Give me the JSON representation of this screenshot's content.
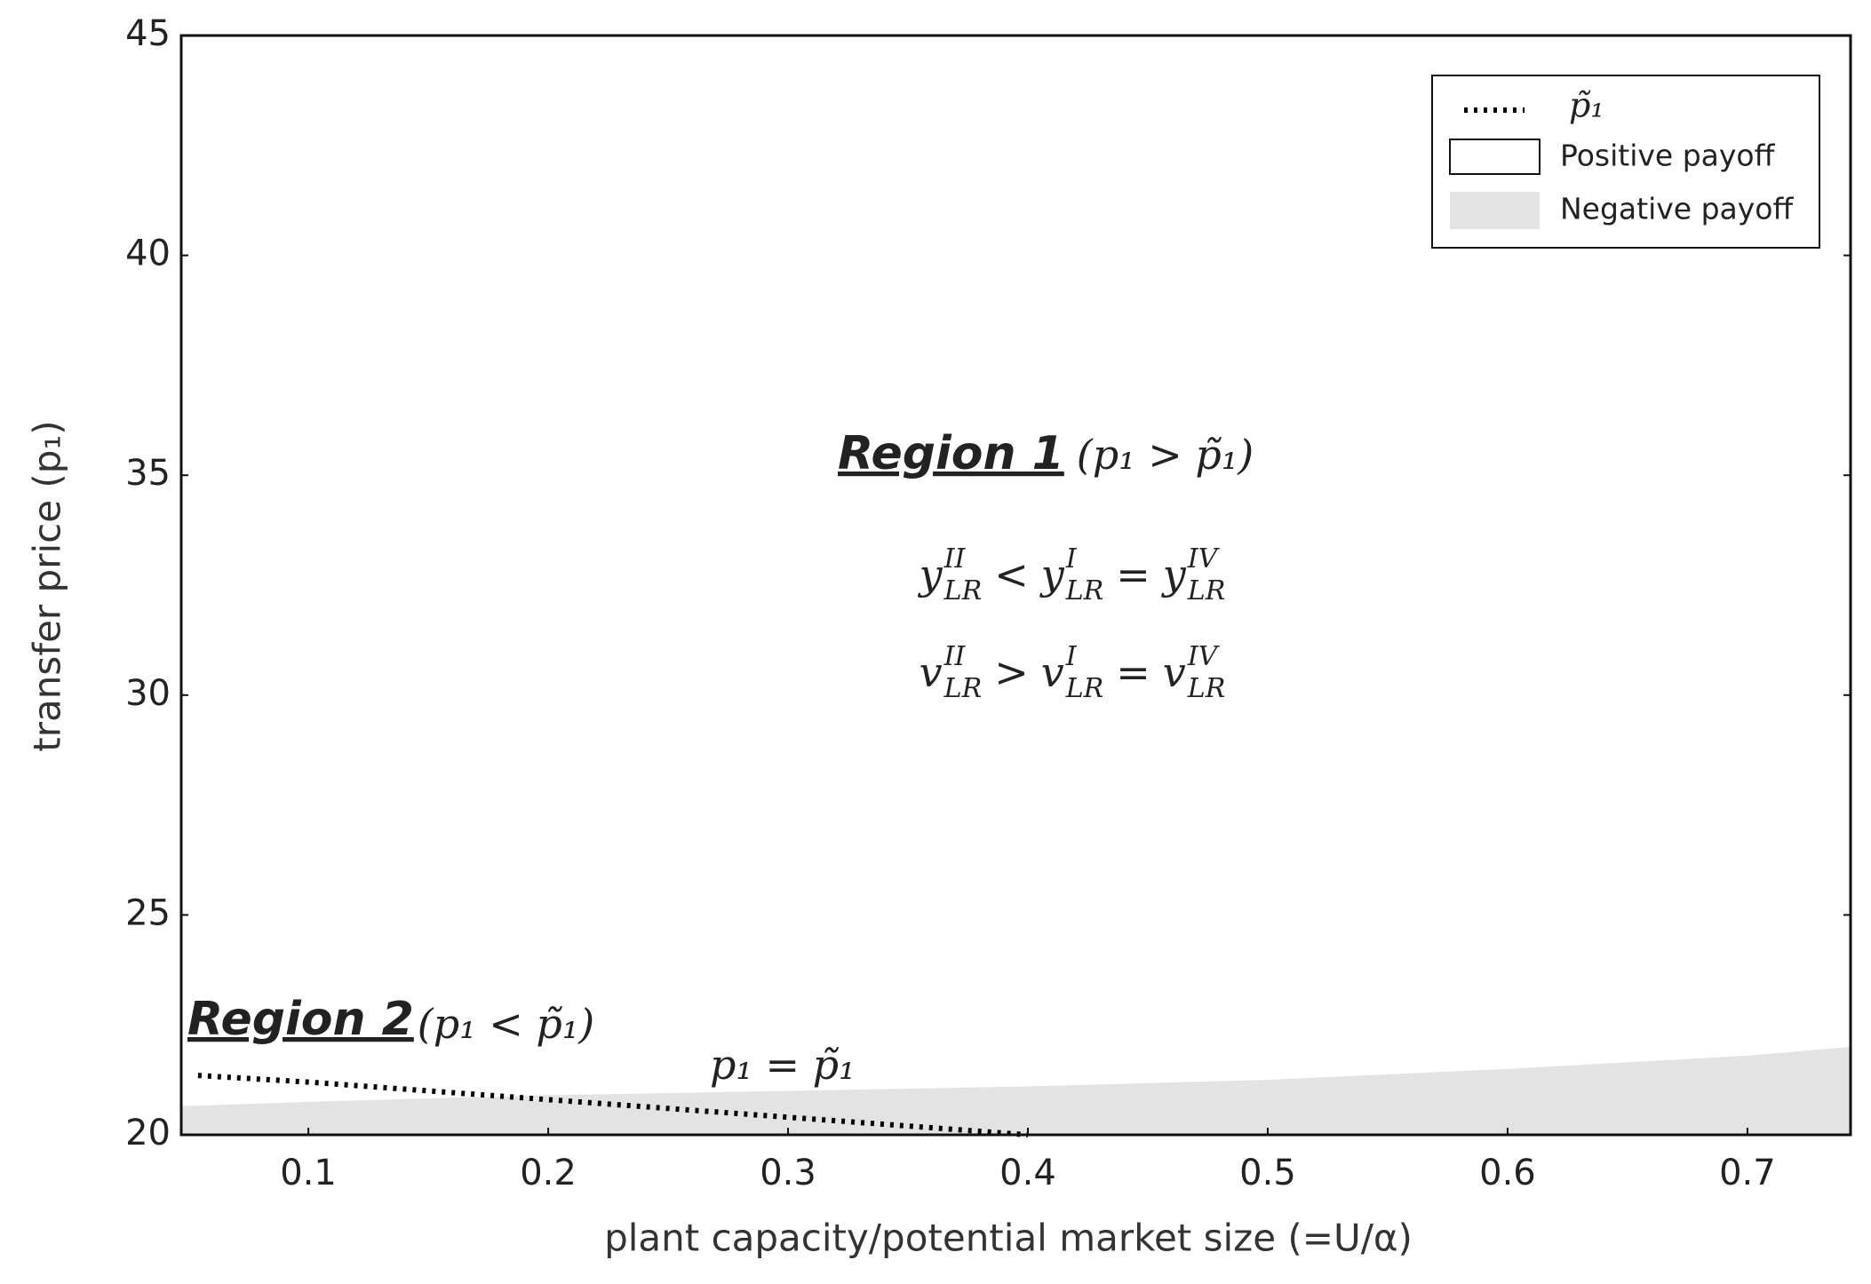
{
  "chart_data": {
    "type": "area-line",
    "xlabel": "plant capacity/potential market size (=U/α)",
    "ylabel": "transfer price (p₁)",
    "xlim": [
      0.047,
      0.743
    ],
    "ylim": [
      20,
      45
    ],
    "xticks": [
      0.1,
      0.2,
      0.3,
      0.4,
      0.5,
      0.6,
      0.7
    ],
    "yticks": [
      20,
      25,
      30,
      35,
      40,
      45
    ],
    "grid": false,
    "legend": "upper right",
    "background_region": {
      "name": "Positive payoff",
      "color": "#ffffff"
    },
    "series": [
      {
        "name": "Negative payoff",
        "type": "area",
        "color": "#e3e3e3",
        "x": [
          0.047,
          0.1,
          0.2,
          0.3,
          0.4,
          0.5,
          0.6,
          0.7,
          0.743
        ],
        "values": [
          20.65,
          20.75,
          20.9,
          21.0,
          21.1,
          21.25,
          21.5,
          21.8,
          22.0
        ]
      },
      {
        "name": "p̃₁",
        "type": "line",
        "style": "dotted",
        "color": "#000000",
        "x": [
          0.054,
          0.1,
          0.2,
          0.3,
          0.4
        ],
        "values": [
          21.35,
          21.2,
          20.8,
          20.4,
          20.0
        ]
      }
    ],
    "region_1": {
      "label": "Region 1",
      "condition": "(p₁ > p̃₁)"
    },
    "formula_1": [
      {
        "base": "y",
        "sup": "II",
        "sub": "LR"
      },
      {
        "op": "<"
      },
      {
        "base": "y",
        "sup": "I",
        "sub": "LR"
      },
      {
        "op": "="
      },
      {
        "base": "y",
        "sup": "IV",
        "sub": "LR"
      }
    ],
    "formula_2": [
      {
        "base": "v",
        "sup": "II",
        "sub": "LR"
      },
      {
        "op": ">"
      },
      {
        "base": "v",
        "sup": "I",
        "sub": "LR"
      },
      {
        "op": "="
      },
      {
        "base": "v",
        "sup": "IV",
        "sub": "LR"
      }
    ],
    "region_2": {
      "label": "Region 2",
      "condition": "(p₁ < p̃₁)"
    },
    "line_label": "p₁ = p̃₁"
  }
}
